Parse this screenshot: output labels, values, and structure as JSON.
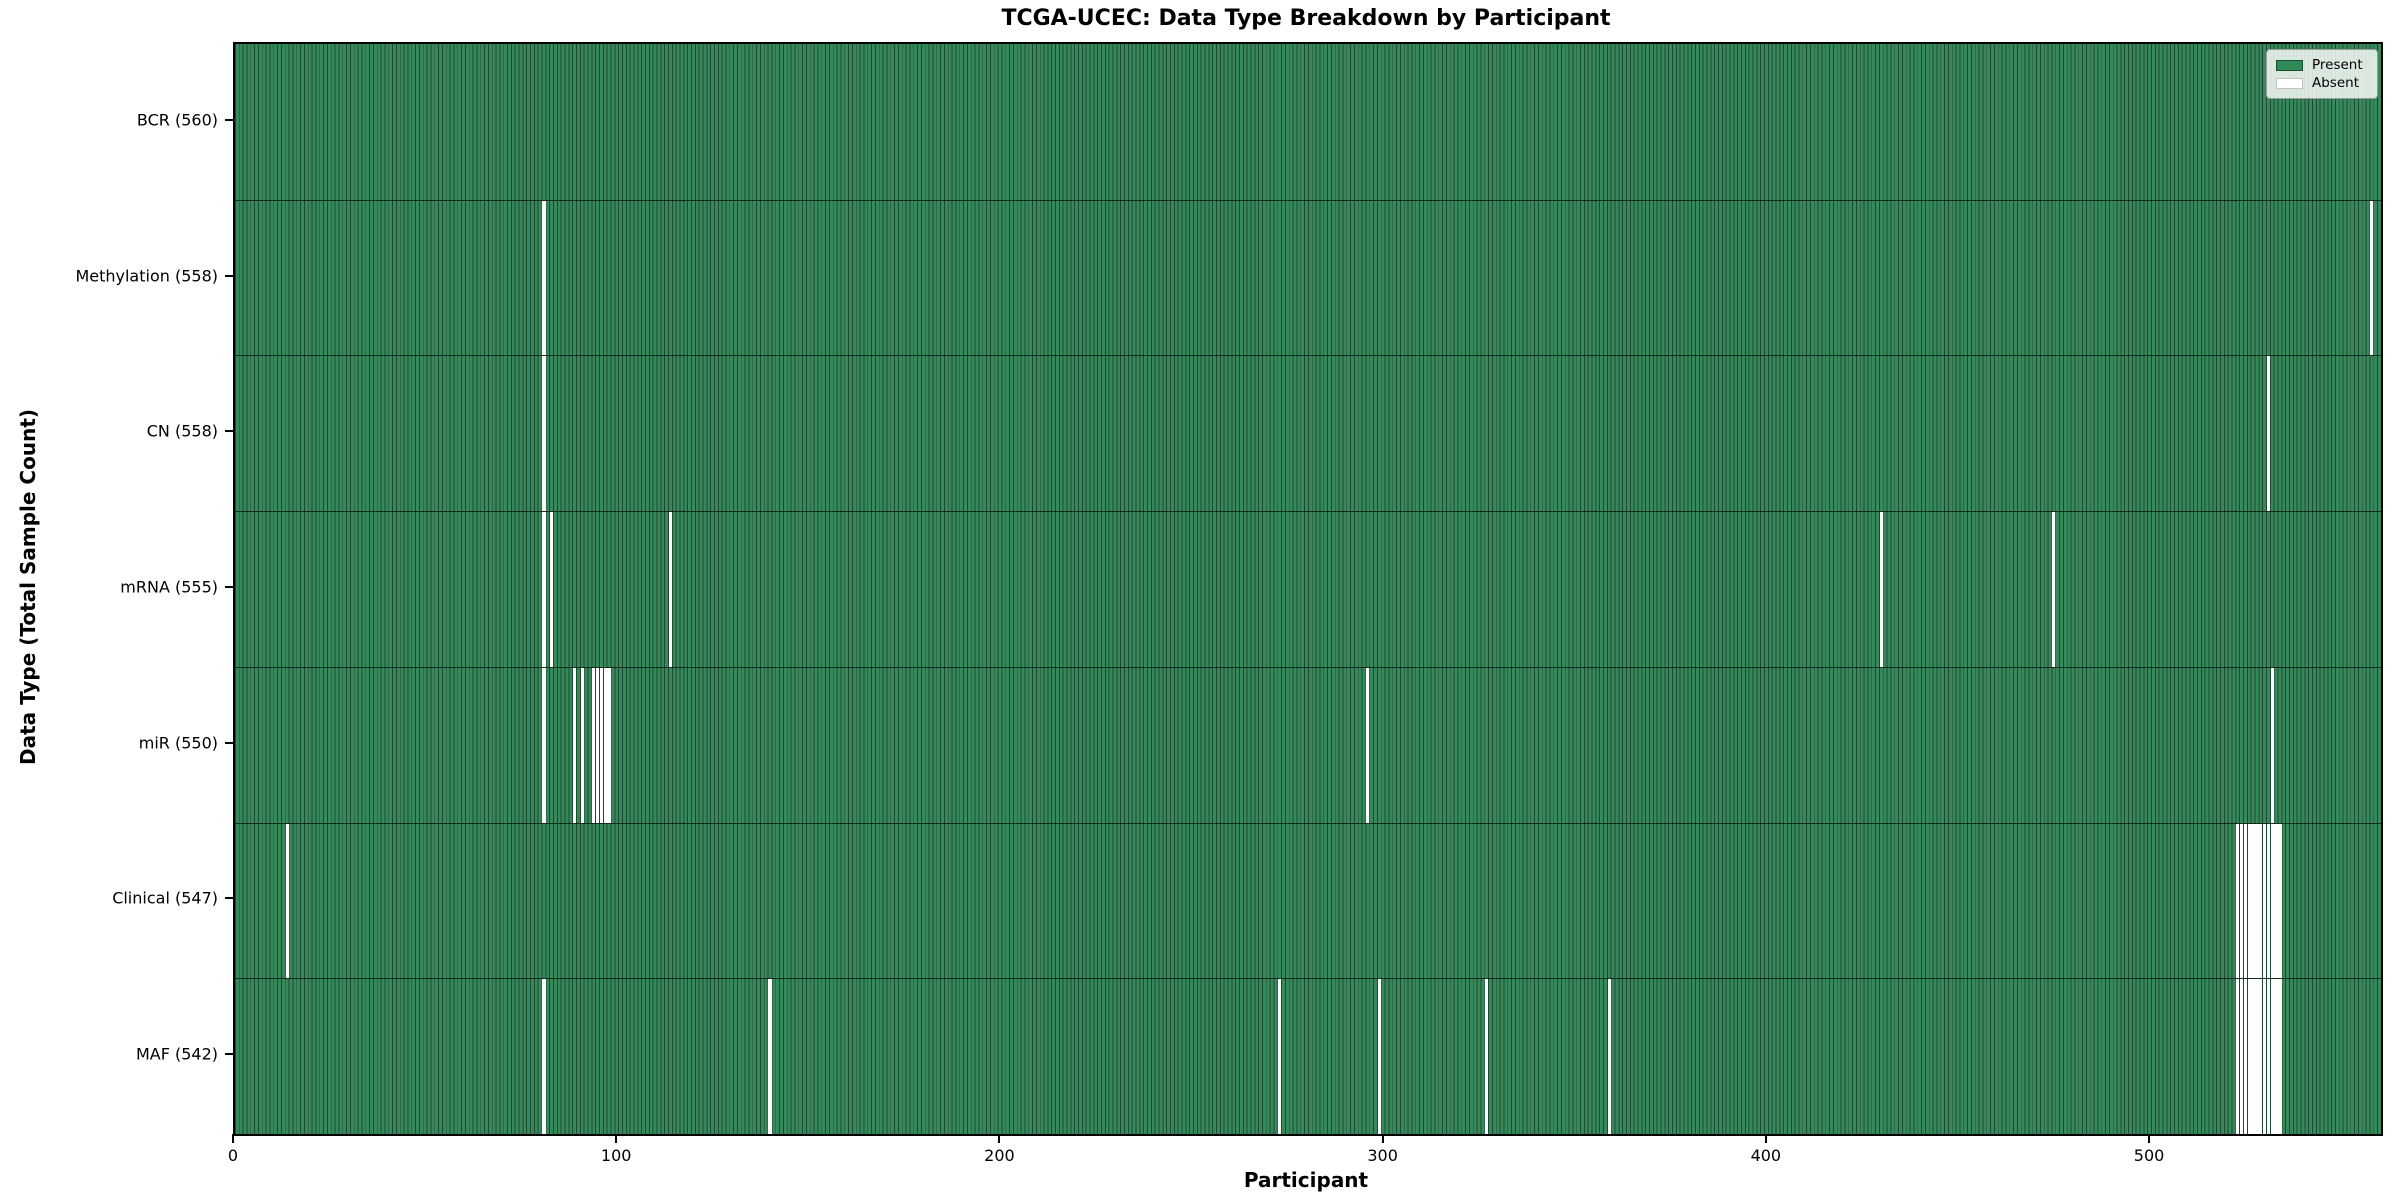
{
  "chart_data": {
    "type": "heatmap",
    "title": "TCGA-UCEC: Data Type Breakdown by Participant",
    "xlabel": "Participant",
    "ylabel": "Data Type (Total Sample Count)",
    "x_ticks": [
      0,
      100,
      200,
      300,
      400,
      500
    ],
    "x_range": [
      0,
      560
    ],
    "n_participants": 560,
    "grid": false,
    "legend_position": "upper right",
    "legend": [
      {
        "label": "Present",
        "color": "#2e8b57"
      },
      {
        "label": "Absent",
        "color": "#ffffff"
      }
    ],
    "colors": {
      "present": "#2e8b57",
      "present_fill": "#37895b",
      "bar_edge": "#1c4a31",
      "absent": "#ffffff",
      "absent_edge": "#d9d9d9",
      "spine": "#000000"
    },
    "rows": [
      {
        "label": "BCR (560)",
        "data_type": "BCR",
        "present_count": 560,
        "absent_participants": []
      },
      {
        "label": "Methylation (558)",
        "data_type": "Methylation",
        "present_count": 558,
        "absent_participants": [
          80,
          557
        ]
      },
      {
        "label": "CN (558)",
        "data_type": "CN",
        "present_count": 558,
        "absent_participants": [
          80,
          530
        ]
      },
      {
        "label": "mRNA (555)",
        "data_type": "mRNA",
        "present_count": 555,
        "absent_participants": [
          80,
          82,
          113,
          429,
          474
        ]
      },
      {
        "label": "miR (550)",
        "data_type": "miR",
        "present_count": 550,
        "absent_participants": [
          80,
          88,
          90,
          93,
          94,
          95,
          96,
          97,
          295,
          531
        ]
      },
      {
        "label": "Clinical (547)",
        "data_type": "Clinical",
        "present_count": 547,
        "absent_participants": [
          13,
          522,
          523,
          524,
          525,
          526,
          527,
          528,
          529,
          530,
          531,
          532,
          533
        ]
      },
      {
        "label": "MAF (542)",
        "data_type": "MAF",
        "present_count": 542,
        "absent_participants": [
          80,
          139,
          272,
          298,
          326,
          358,
          522,
          523,
          524,
          525,
          526,
          527,
          528,
          529,
          530,
          531,
          532,
          533
        ]
      }
    ]
  }
}
